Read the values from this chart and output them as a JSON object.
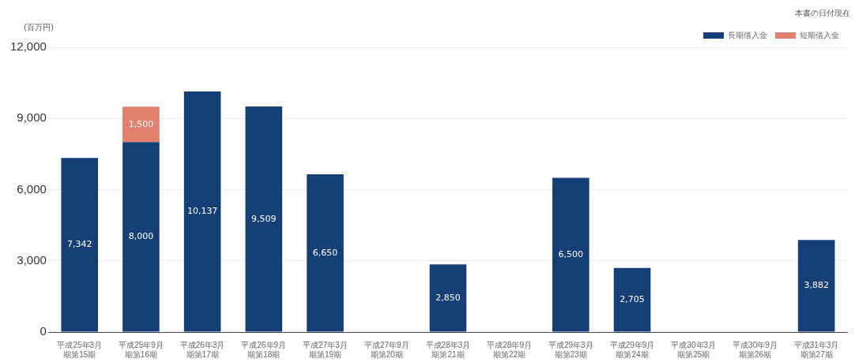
{
  "chart_data": {
    "type": "bar",
    "stacked": true,
    "ylabel": "(百万円)",
    "annotations": [
      "本書の日付現在"
    ],
    "categories": [
      "平成25年3月期第15期",
      "平成25年9月期第16期",
      "平成26年3月期第17期",
      "平成26年9月期第18期",
      "平成27年3月期第19期",
      "平成27年9月期第20期",
      "平成28年3月期第21期",
      "平成28年9月期第22期",
      "平成29年3月期第23期",
      "平成29年9月期第24期",
      "平成30年3月期第25期",
      "平成30年9月期第26期",
      "平成31年3月期第27期"
    ],
    "series": [
      {
        "name": "長期借入金",
        "color": "#163f78",
        "values": [
          7342,
          8000,
          10137,
          9509,
          6650,
          null,
          2850,
          null,
          6500,
          2705,
          null,
          null,
          3882
        ],
        "value_labels": [
          "7,342",
          "8,000",
          "10,137",
          "9,509",
          "6,650",
          null,
          "2,850",
          null,
          "6,500",
          "2,705",
          null,
          null,
          "3,882"
        ]
      },
      {
        "name": "短期借入金",
        "color": "#e27f6e",
        "values": [
          null,
          1500,
          null,
          null,
          null,
          null,
          null,
          null,
          null,
          null,
          null,
          null,
          null
        ],
        "value_labels": [
          null,
          "1,500",
          null,
          null,
          null,
          null,
          null,
          null,
          null,
          null,
          null,
          null,
          null
        ]
      }
    ],
    "ylim": [
      0,
      12000
    ],
    "yticks": [
      0,
      {
        "value": 3000,
        "label": "3,000"
      },
      {
        "value": 6000,
        "label": "6,000"
      },
      {
        "value": 9000,
        "label": "9,000"
      },
      {
        "value": 12000,
        "label": "12,000"
      }
    ],
    "grid": "y",
    "legend": "top right"
  }
}
